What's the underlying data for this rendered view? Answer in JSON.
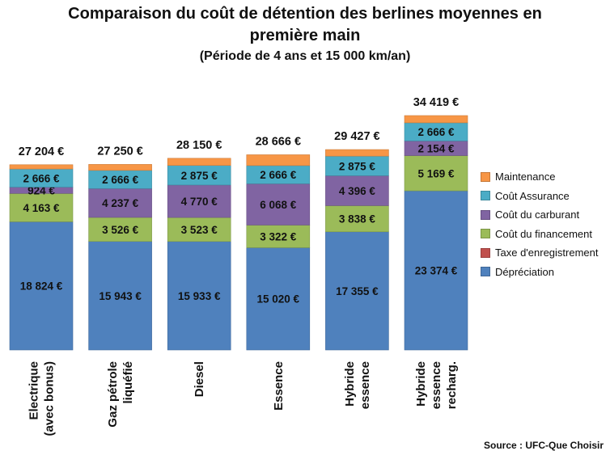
{
  "title": {
    "line1": "Comparaison du coût de détention des berlines moyennes en",
    "line2": "première main",
    "line3": "(Période de 4 ans et 15 000 km/an)"
  },
  "source": "Source : UFC-Que Choisir",
  "chart_data": {
    "type": "bar",
    "stacked": true,
    "categories": [
      [
        "Electrique",
        "(avec bonus)"
      ],
      [
        "Gaz pétrole",
        "liquéfié"
      ],
      [
        "Diesel"
      ],
      [
        "Essence"
      ],
      [
        "Hybride",
        "essence"
      ],
      [
        "Hybride",
        "essence",
        "recharg."
      ]
    ],
    "series": [
      {
        "name": "Dépréciation",
        "color": "#4F81BD",
        "values": [
          18824,
          15943,
          15933,
          15020,
          17355,
          23374
        ],
        "labels": [
          "18 824 €",
          "15 943 €",
          "15 933 €",
          "15 020 €",
          "17 355 €",
          "23 374 €"
        ]
      },
      {
        "name": "Taxe d'enregistrement",
        "color": "#C0504D",
        "values": [
          0,
          0,
          0,
          0,
          0,
          0
        ],
        "labels": [
          "",
          "",
          "",
          "",
          "",
          ""
        ]
      },
      {
        "name": "Coût du financement",
        "color": "#9BBB59",
        "values": [
          4163,
          3526,
          3523,
          3322,
          3838,
          5169
        ],
        "labels": [
          "4 163 €",
          "3 526 €",
          "3 523 €",
          "3 322 €",
          "3 838 €",
          "5 169 €"
        ]
      },
      {
        "name": "Coût du carburant",
        "color": "#8064A2",
        "values": [
          924,
          4237,
          4770,
          6068,
          4396,
          2154
        ],
        "labels": [
          "924 €",
          "4 237 €",
          "4 770 €",
          "6 068 €",
          "4 396 €",
          "2 154 €"
        ]
      },
      {
        "name": "Coût Assurance",
        "color": "#4BACC6",
        "values": [
          2666,
          2666,
          2875,
          2666,
          2875,
          2666
        ],
        "labels": [
          "2 666 €",
          "2 666 €",
          "2 875 €",
          "2 666 €",
          "2 875 €",
          "2 666 €"
        ]
      },
      {
        "name": "Maintenance",
        "color": "#F79646",
        "values": [
          627,
          878,
          1049,
          1590,
          963,
          1056
        ],
        "labels": [
          "",
          "",
          "",
          "",
          "",
          ""
        ]
      }
    ],
    "totals": [
      27204,
      27250,
      28150,
      28666,
      29427,
      34419
    ],
    "total_labels": [
      "27 204 €",
      "27 250 €",
      "28 150 €",
      "28 666 €",
      "29 427 €",
      "34 419 €"
    ],
    "legend_order": [
      "Maintenance",
      "Coût Assurance",
      "Coût du carburant",
      "Coût du financement",
      "Taxe d'enregistrement",
      "Dépréciation"
    ],
    "legend_position": "right",
    "ylim": [
      0,
      36000
    ],
    "grid": false
  }
}
